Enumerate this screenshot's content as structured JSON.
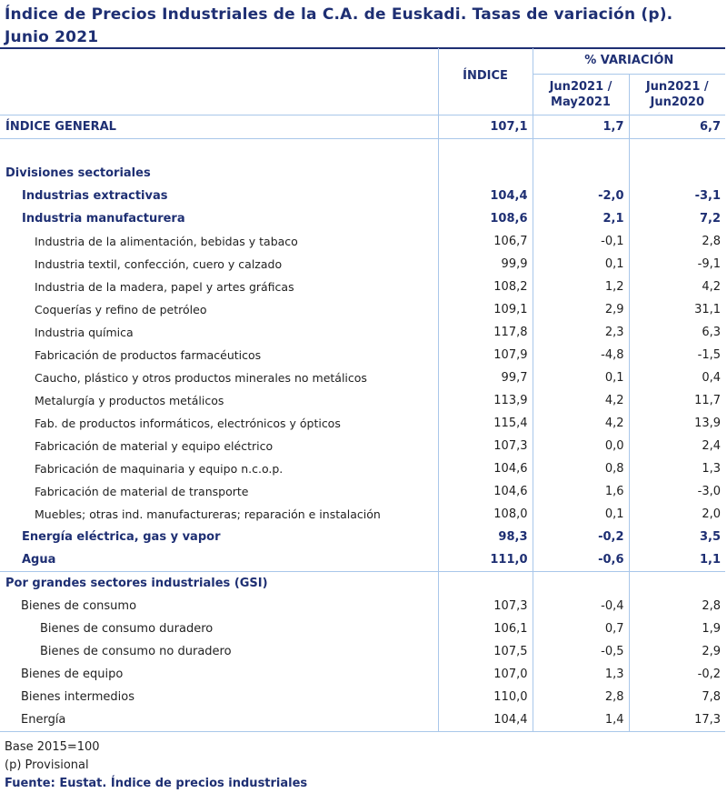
{
  "title": "Índice de Precios Industriales de la C.A. de Euskadi. Tasas de variación (p). Junio 2021",
  "header": {
    "indice": "ÍNDICE",
    "variacion": "% VARIACIÓN",
    "col1": "Jun2021 / May2021",
    "col2": "Jun2021 / Jun2020"
  },
  "general": {
    "label": "ÍNDICE GENERAL",
    "idx": "107,1",
    "v1": "1,7",
    "v2": "6,7"
  },
  "divisiones": {
    "heading": "Divisiones sectoriales",
    "rows": [
      {
        "label": "Industrias extractivas",
        "idx": "104,4",
        "v1": "-2,0",
        "v2": "-3,1"
      },
      {
        "label": "Industria manufacturera",
        "idx": "108,6",
        "v1": "2,1",
        "v2": "7,2"
      },
      {
        "label": "Industria de la alimentación, bebidas y tabaco",
        "idx": "106,7",
        "v1": "-0,1",
        "v2": "2,8"
      },
      {
        "label": "Industria textil, confección, cuero y calzado",
        "idx": "99,9",
        "v1": "0,1",
        "v2": "-9,1"
      },
      {
        "label": "Industria de la madera, papel y artes gráficas",
        "idx": "108,2",
        "v1": "1,2",
        "v2": "4,2"
      },
      {
        "label": "Coquerías y refino de petróleo",
        "idx": "109,1",
        "v1": "2,9",
        "v2": "31,1"
      },
      {
        "label": "Industria química",
        "idx": "117,8",
        "v1": "2,3",
        "v2": "6,3"
      },
      {
        "label": "Fabricación de productos farmacéuticos",
        "idx": "107,9",
        "v1": "-4,8",
        "v2": "-1,5"
      },
      {
        "label": "Caucho, plástico y otros productos minerales no metálicos",
        "idx": "99,7",
        "v1": "0,1",
        "v2": "0,4"
      },
      {
        "label": "Metalurgía y productos metálicos",
        "idx": "113,9",
        "v1": "4,2",
        "v2": "11,7"
      },
      {
        "label": "Fab. de productos informáticos, electrónicos y ópticos",
        "idx": "115,4",
        "v1": "4,2",
        "v2": "13,9"
      },
      {
        "label": "Fabricación de material y equipo eléctrico",
        "idx": "107,3",
        "v1": "0,0",
        "v2": "2,4"
      },
      {
        "label": "Fabricación de maquinaria y equipo n.c.o.p.",
        "idx": "104,6",
        "v1": "0,8",
        "v2": "1,3"
      },
      {
        "label": "Fabricación de material de transporte",
        "idx": "104,6",
        "v1": "1,6",
        "v2": "-3,0"
      },
      {
        "label": "Muebles; otras ind. manufactureras; reparación e instalación",
        "idx": "108,0",
        "v1": "0,1",
        "v2": "2,0"
      },
      {
        "label": "Energía eléctrica, gas y vapor",
        "idx": "98,3",
        "v1": "-0,2",
        "v2": "3,5"
      },
      {
        "label": "Agua",
        "idx": "111,0",
        "v1": "-0,6",
        "v2": "1,1"
      }
    ]
  },
  "gsi": {
    "heading": "Por grandes sectores industriales (GSI)",
    "rows": [
      {
        "label": "Bienes de consumo",
        "idx": "107,3",
        "v1": "-0,4",
        "v2": "2,8"
      },
      {
        "label": "Bienes de consumo duradero",
        "idx": "106,1",
        "v1": "0,7",
        "v2": "1,9"
      },
      {
        "label": "Bienes de consumo no duradero",
        "idx": "107,5",
        "v1": "-0,5",
        "v2": "2,9"
      },
      {
        "label": "Bienes de equipo",
        "idx": "107,0",
        "v1": "1,3",
        "v2": "-0,2"
      },
      {
        "label": "Bienes intermedios",
        "idx": "110,0",
        "v1": "2,8",
        "v2": "7,8"
      },
      {
        "label": "Energía",
        "idx": "104,4",
        "v1": "1,4",
        "v2": "17,3"
      }
    ]
  },
  "footer": {
    "base": "Base 2015=100",
    "provisional": "(p) Provisional",
    "fuente": "Fuente: Eustat. Índice de precios industriales"
  },
  "colors": {
    "heading": "#1e2f73",
    "grid": "#a9c7ea"
  }
}
